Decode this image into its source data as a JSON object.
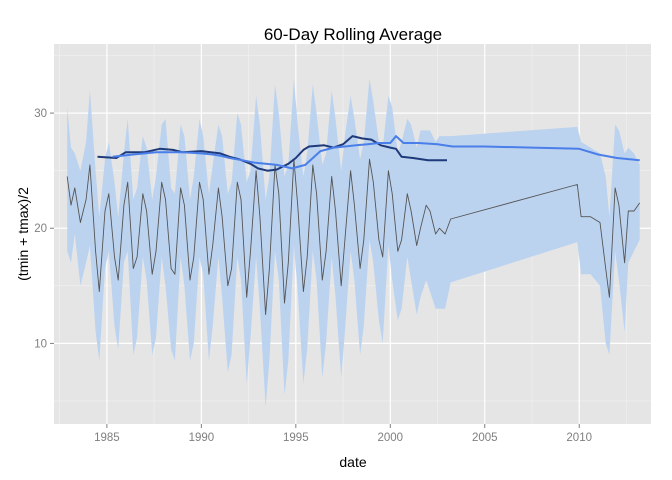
{
  "chart_data": {
    "type": "line",
    "title": "60-Day Rolling Average",
    "xlabel": "date",
    "ylabel": "(tmin + tmax)/2",
    "xlim": [
      1982.2,
      2013.8
    ],
    "ylim": [
      3,
      36
    ],
    "x_ticks": [
      1985,
      1990,
      1995,
      2000,
      2005,
      2010
    ],
    "x_tick_labels": [
      "1985",
      "1990",
      "1995",
      "2000",
      "2005",
      "2010"
    ],
    "y_ticks": [
      10,
      20,
      30
    ],
    "y_tick_labels": [
      "10",
      "20",
      "30"
    ],
    "grid": true,
    "background": "#e5e5e5",
    "colors": {
      "daily_line": "#555555",
      "band": "#bcd3f0",
      "rolling_dark": "#1f3a7a",
      "rolling_light": "#4a7ee8"
    },
    "series": [
      {
        "kind": "line",
        "color": "#555555",
        "x": [
          1982.9,
          1983.1,
          1983.3,
          1983.6,
          1983.9,
          1984.1,
          1984.4,
          1984.6,
          1984.9,
          1985.1,
          1985.4,
          1985.6,
          1985.9,
          1986.1,
          1986.4,
          1986.6,
          1986.9,
          1987.1,
          1987.4,
          1987.6,
          1987.9,
          1988.1,
          1988.4,
          1988.6,
          1988.9,
          1989.1,
          1989.4,
          1989.6,
          1989.9,
          1990.1,
          1990.4,
          1990.6,
          1990.9,
          1991.1,
          1991.4,
          1991.6,
          1991.9,
          1992.1,
          1992.4,
          1992.6,
          1992.9,
          1993.1,
          1993.4,
          1993.6,
          1993.9,
          1994.1,
          1994.4,
          1994.6,
          1994.9,
          1995.1,
          1995.4,
          1995.6,
          1995.9,
          1996.1,
          1996.4,
          1996.6,
          1996.9,
          1997.1,
          1997.4,
          1997.6,
          1997.9,
          1998.1,
          1998.4,
          1998.6,
          1998.9,
          1999.1,
          1999.4,
          1999.6,
          1999.9,
          2000.1,
          2000.4,
          2000.6,
          2000.9,
          2001.1,
          2001.4,
          2001.6,
          2001.9,
          2002.1,
          2002.4,
          2002.6,
          2002.9,
          2003.2,
          2009.9,
          2010.1,
          2010.6,
          2011.1,
          2011.4,
          2011.6,
          2011.9,
          2012.1,
          2012.4,
          2012.6,
          2012.9,
          2013.2
        ],
        "y": [
          24.5,
          22.0,
          23.5,
          20.5,
          22.5,
          25.5,
          18.0,
          14.5,
          21.5,
          23.0,
          17.5,
          15.5,
          22.0,
          24.0,
          16.5,
          17.5,
          23.0,
          21.5,
          16.0,
          18.0,
          24.0,
          22.5,
          16.5,
          16.0,
          23.5,
          22.0,
          15.5,
          17.5,
          24.0,
          22.5,
          16.0,
          18.5,
          23.5,
          21.0,
          15.0,
          16.5,
          24.0,
          22.5,
          14.0,
          18.0,
          25.0,
          21.0,
          12.5,
          16.5,
          25.5,
          23.0,
          13.5,
          17.0,
          26.0,
          22.0,
          14.5,
          17.5,
          25.5,
          23.0,
          15.5,
          18.0,
          24.5,
          21.5,
          15.0,
          19.0,
          25.0,
          22.0,
          16.5,
          19.0,
          26.0,
          24.0,
          19.0,
          17.5,
          25.0,
          23.0,
          18.0,
          19.0,
          23.0,
          21.5,
          18.5,
          20.0,
          22.0,
          21.5,
          19.5,
          20.0,
          19.5,
          20.8,
          23.8,
          21.0,
          21.0,
          20.5,
          16.5,
          14.0,
          23.5,
          22.0,
          17.0,
          21.5,
          21.5,
          22.2
        ]
      },
      {
        "kind": "line",
        "color": "#1f3a7a",
        "x": [
          1984.5,
          1985.5,
          1986.0,
          1987.0,
          1987.8,
          1988.5,
          1989.0,
          1990.0,
          1990.5,
          1991.0,
          1991.5,
          1992.0,
          1992.6,
          1993.0,
          1993.5,
          1994.0,
          1994.6,
          1995.0,
          1995.4,
          1995.7,
          1996.5,
          1997.0,
          1997.5,
          1998.0,
          1998.5,
          1999.0,
          1999.5,
          2000.0,
          2000.3,
          2000.6,
          2001.2,
          2002.0,
          2003.0
        ],
        "y": [
          26.2,
          26.1,
          26.6,
          26.6,
          26.9,
          26.8,
          26.6,
          26.7,
          26.6,
          26.5,
          26.2,
          26.0,
          25.6,
          25.2,
          25.0,
          25.1,
          25.6,
          26.1,
          26.8,
          27.1,
          27.2,
          27.0,
          27.3,
          28.0,
          27.8,
          27.7,
          27.2,
          27.0,
          26.9,
          26.2,
          26.1,
          25.9,
          25.9
        ]
      },
      {
        "kind": "line",
        "color": "#4a7ee8",
        "x": [
          1985.3,
          1985.8,
          1986.4,
          1987.0,
          1987.6,
          1988.0,
          1989.0,
          1990.0,
          1990.6,
          1991.0,
          1991.5,
          1992.2,
          1992.8,
          1993.4,
          1994.0,
          1994.8,
          1995.5,
          1996.3,
          1997.0,
          1997.6,
          1998.2,
          1998.8,
          1999.4,
          2000.0,
          2000.3,
          2000.7,
          2001.5,
          2002.5,
          2003.3,
          2005.0,
          2007.5,
          2010.0,
          2011.0,
          2012.0,
          2013.2
        ],
        "y": [
          26.2,
          26.3,
          26.4,
          26.5,
          26.6,
          26.6,
          26.6,
          26.5,
          26.4,
          26.3,
          26.1,
          25.9,
          25.7,
          25.6,
          25.5,
          25.2,
          25.5,
          26.7,
          27.0,
          27.1,
          27.2,
          27.3,
          27.4,
          27.4,
          28.0,
          27.4,
          27.4,
          27.3,
          27.1,
          27.1,
          27.0,
          26.9,
          26.4,
          26.1,
          25.9
        ]
      }
    ],
    "band": {
      "kind": "ribbon",
      "color": "#bcd3f0",
      "x": [
        1982.9,
        1983.1,
        1983.3,
        1983.6,
        1983.9,
        1984.1,
        1984.4,
        1984.6,
        1984.9,
        1985.1,
        1985.4,
        1985.6,
        1985.9,
        1986.1,
        1986.4,
        1986.6,
        1986.9,
        1987.1,
        1987.4,
        1987.6,
        1987.9,
        1988.1,
        1988.4,
        1988.6,
        1988.9,
        1989.1,
        1989.4,
        1989.6,
        1989.9,
        1990.1,
        1990.4,
        1990.6,
        1990.9,
        1991.1,
        1991.4,
        1991.6,
        1991.9,
        1992.1,
        1992.4,
        1992.6,
        1992.9,
        1993.1,
        1993.4,
        1993.6,
        1993.9,
        1994.1,
        1994.4,
        1994.6,
        1994.9,
        1995.1,
        1995.4,
        1995.6,
        1995.9,
        1996.1,
        1996.4,
        1996.6,
        1996.9,
        1997.1,
        1997.4,
        1997.6,
        1997.9,
        1998.1,
        1998.4,
        1998.6,
        1998.9,
        1999.1,
        1999.4,
        1999.6,
        1999.9,
        2000.1,
        2000.4,
        2000.6,
        2000.9,
        2001.1,
        2001.4,
        2001.6,
        2001.9,
        2002.1,
        2002.4,
        2002.6,
        2002.9,
        2003.2,
        2009.9,
        2010.1,
        2010.6,
        2011.1,
        2011.4,
        2011.6,
        2011.9,
        2012.1,
        2012.4,
        2012.6,
        2012.9,
        2013.2
      ],
      "upper": [
        30.5,
        27.0,
        26.5,
        25.0,
        27.5,
        32.0,
        25.0,
        21.0,
        26.0,
        27.5,
        24.0,
        21.0,
        26.5,
        29.5,
        22.5,
        23.5,
        28.0,
        27.0,
        22.5,
        24.5,
        29.0,
        29.5,
        23.5,
        23.0,
        29.0,
        28.0,
        22.5,
        24.5,
        29.5,
        28.0,
        23.0,
        25.5,
        29.0,
        28.0,
        23.0,
        24.0,
        30.0,
        29.0,
        24.0,
        25.0,
        31.5,
        29.0,
        22.5,
        24.5,
        32.5,
        30.0,
        24.5,
        25.5,
        33.0,
        29.0,
        24.5,
        26.5,
        32.5,
        30.0,
        25.5,
        26.5,
        32.0,
        29.5,
        25.0,
        28.0,
        31.5,
        29.5,
        26.0,
        27.5,
        33.0,
        31.0,
        27.5,
        27.0,
        31.5,
        30.5,
        26.5,
        27.5,
        29.5,
        29.0,
        27.0,
        28.5,
        28.5,
        28.5,
        27.5,
        28.0,
        28.0,
        28.0,
        28.8,
        27.5,
        27.0,
        26.5,
        24.5,
        21.0,
        29.0,
        28.5,
        26.5,
        27.0,
        26.5,
        25.5
      ],
      "lower": [
        18.0,
        17.0,
        19.5,
        15.0,
        17.0,
        18.5,
        11.0,
        8.5,
        16.5,
        18.0,
        11.5,
        9.5,
        17.0,
        18.0,
        9.0,
        10.5,
        17.5,
        15.5,
        9.0,
        10.5,
        17.5,
        15.0,
        9.5,
        8.5,
        17.5,
        15.0,
        8.5,
        10.0,
        17.5,
        16.0,
        8.5,
        11.5,
        17.5,
        14.0,
        7.5,
        9.0,
        17.5,
        15.5,
        6.5,
        10.5,
        17.5,
        13.0,
        4.5,
        8.5,
        18.0,
        15.5,
        5.5,
        8.5,
        18.5,
        14.5,
        6.5,
        9.5,
        18.0,
        15.5,
        7.0,
        10.0,
        17.5,
        14.0,
        7.0,
        11.0,
        18.0,
        15.5,
        9.0,
        11.5,
        19.0,
        17.0,
        12.0,
        10.0,
        18.5,
        15.5,
        12.0,
        13.0,
        17.5,
        15.5,
        12.5,
        14.0,
        15.5,
        14.5,
        13.0,
        13.0,
        13.0,
        15.3,
        18.8,
        16.0,
        16.0,
        15.0,
        10.0,
        9.0,
        18.0,
        15.5,
        11.0,
        17.0,
        18.0,
        19.0
      ]
    }
  }
}
